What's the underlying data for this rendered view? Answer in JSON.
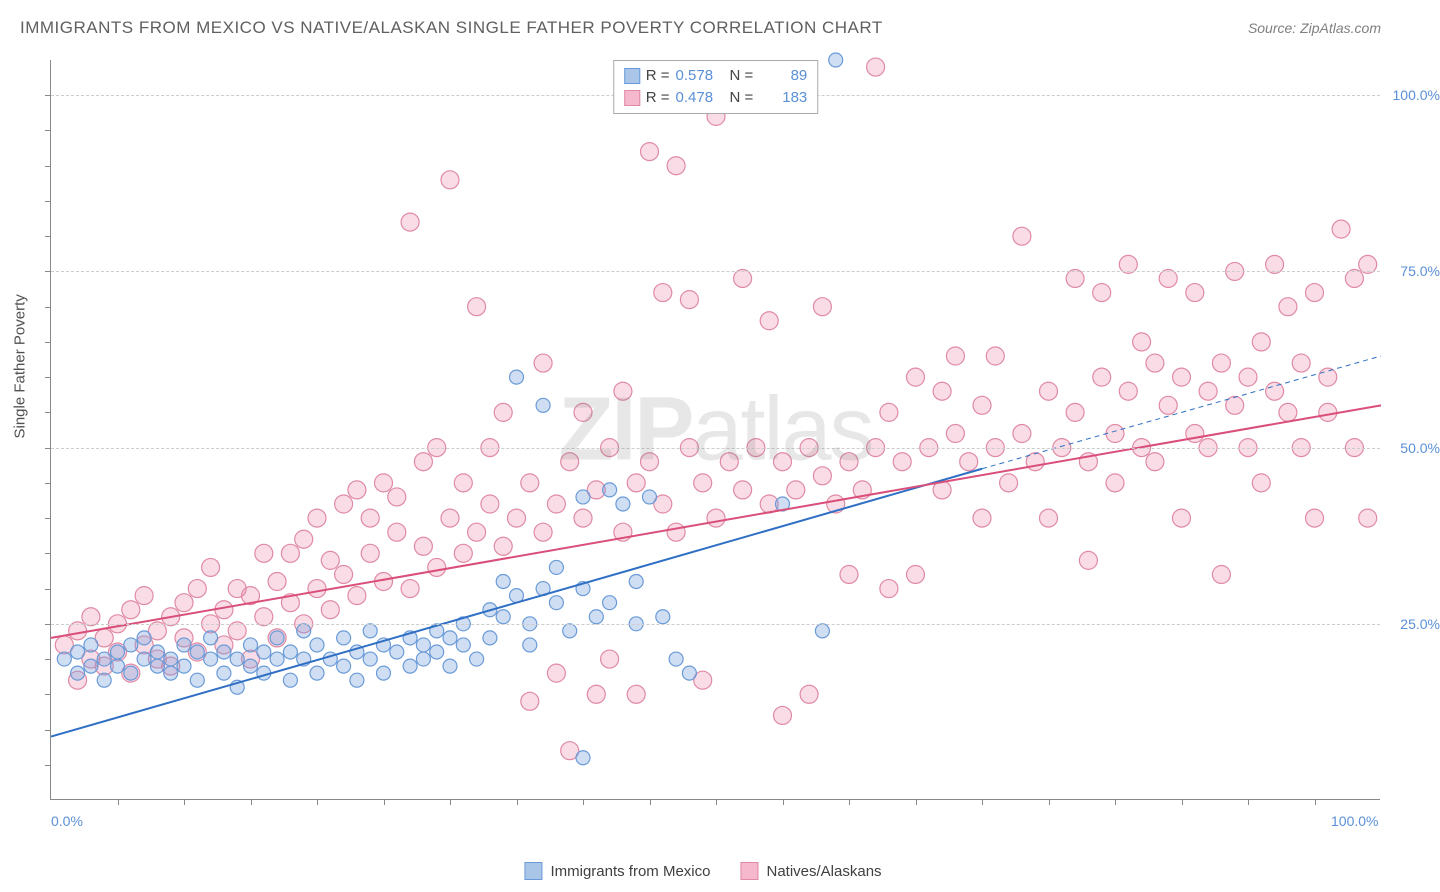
{
  "title": "IMMIGRANTS FROM MEXICO VS NATIVE/ALASKAN SINGLE FATHER POVERTY CORRELATION CHART",
  "source_label": "Source: ",
  "source_name": "ZipAtlas.com",
  "y_axis_label": "Single Father Poverty",
  "watermark_part1": "ZIP",
  "watermark_part2": "atlas",
  "chart": {
    "type": "scatter",
    "background_color": "#ffffff",
    "grid_color": "#cccccc",
    "axis_color": "#888888",
    "tick_label_color": "#5b8fd6",
    "xlim": [
      0,
      100
    ],
    "ylim": [
      0,
      105
    ],
    "y_ticks": [
      {
        "value": 25,
        "label": "25.0%"
      },
      {
        "value": 50,
        "label": "50.0%"
      },
      {
        "value": 75,
        "label": "75.0%"
      },
      {
        "value": 100,
        "label": "100.0%"
      }
    ],
    "x_ticks": [
      {
        "value": 0,
        "label": "0.0%"
      },
      {
        "value": 100,
        "label": "100.0%"
      }
    ],
    "x_minor_ticks": [
      5,
      10,
      15,
      20,
      25,
      30,
      35,
      40,
      45,
      50,
      55,
      60,
      65,
      70,
      75,
      80,
      85,
      90,
      95
    ],
    "y_minor_ticks": [
      5,
      10,
      15,
      20,
      25,
      30,
      35,
      40,
      45,
      50,
      55,
      60,
      65,
      70,
      75,
      80,
      85,
      90,
      95,
      100
    ]
  },
  "series": [
    {
      "id": "mexico",
      "label": "Immigrants from Mexico",
      "marker_fill": "rgba(120,160,220,0.35)",
      "marker_stroke": "#6a9bd8",
      "swatch_fill": "#a9c5e8",
      "swatch_border": "#6a9bd8",
      "r_label": "R =",
      "r_value": "0.578",
      "n_label": "N =",
      "n_value": "89",
      "trend": {
        "x1": 0,
        "y1": 9,
        "x2": 70,
        "y2": 47,
        "dash_x2": 100,
        "dash_y2": 63,
        "color": "#2f6fc4",
        "width": 2
      },
      "marker_radius": 7,
      "points": [
        [
          1,
          20
        ],
        [
          2,
          21
        ],
        [
          2,
          18
        ],
        [
          3,
          19
        ],
        [
          3,
          22
        ],
        [
          4,
          20
        ],
        [
          4,
          17
        ],
        [
          5,
          21
        ],
        [
          5,
          19
        ],
        [
          6,
          18
        ],
        [
          6,
          22
        ],
        [
          7,
          20
        ],
        [
          7,
          23
        ],
        [
          8,
          19
        ],
        [
          8,
          21
        ],
        [
          9,
          18
        ],
        [
          9,
          20
        ],
        [
          10,
          22
        ],
        [
          10,
          19
        ],
        [
          11,
          21
        ],
        [
          11,
          17
        ],
        [
          12,
          20
        ],
        [
          12,
          23
        ],
        [
          13,
          18
        ],
        [
          13,
          21
        ],
        [
          14,
          20
        ],
        [
          14,
          16
        ],
        [
          15,
          19
        ],
        [
          15,
          22
        ],
        [
          16,
          21
        ],
        [
          16,
          18
        ],
        [
          17,
          20
        ],
        [
          17,
          23
        ],
        [
          18,
          21
        ],
        [
          18,
          17
        ],
        [
          19,
          20
        ],
        [
          19,
          24
        ],
        [
          20,
          18
        ],
        [
          20,
          22
        ],
        [
          21,
          20
        ],
        [
          22,
          19
        ],
        [
          22,
          23
        ],
        [
          23,
          21
        ],
        [
          23,
          17
        ],
        [
          24,
          20
        ],
        [
          24,
          24
        ],
        [
          25,
          22
        ],
        [
          25,
          18
        ],
        [
          26,
          21
        ],
        [
          27,
          23
        ],
        [
          27,
          19
        ],
        [
          28,
          22
        ],
        [
          28,
          20
        ],
        [
          29,
          24
        ],
        [
          29,
          21
        ],
        [
          30,
          23
        ],
        [
          30,
          19
        ],
        [
          31,
          25
        ],
        [
          31,
          22
        ],
        [
          32,
          20
        ],
        [
          33,
          27
        ],
        [
          33,
          23
        ],
        [
          34,
          31
        ],
        [
          34,
          26
        ],
        [
          35,
          29
        ],
        [
          35,
          60
        ],
        [
          36,
          25
        ],
        [
          36,
          22
        ],
        [
          37,
          56
        ],
        [
          37,
          30
        ],
        [
          38,
          33
        ],
        [
          38,
          28
        ],
        [
          39,
          24
        ],
        [
          40,
          43
        ],
        [
          40,
          30
        ],
        [
          41,
          26
        ],
        [
          42,
          44
        ],
        [
          42,
          28
        ],
        [
          43,
          42
        ],
        [
          44,
          31
        ],
        [
          44,
          25
        ],
        [
          45,
          43
        ],
        [
          46,
          26
        ],
        [
          47,
          20
        ],
        [
          48,
          18
        ],
        [
          40,
          6
        ],
        [
          59,
          105
        ],
        [
          55,
          42
        ],
        [
          58,
          24
        ]
      ]
    },
    {
      "id": "natives",
      "label": "Natives/Alaskans",
      "marker_fill": "rgba(235,130,160,0.28)",
      "marker_stroke": "#e08aa5",
      "swatch_fill": "#f5b8cc",
      "swatch_border": "#e08aa5",
      "r_label": "R =",
      "r_value": "0.478",
      "n_label": "N =",
      "n_value": "183",
      "trend": {
        "x1": 0,
        "y1": 23,
        "x2": 100,
        "y2": 56,
        "color": "#d94f7a",
        "width": 2
      },
      "marker_radius": 9,
      "points": [
        [
          1,
          22
        ],
        [
          2,
          24
        ],
        [
          2,
          17
        ],
        [
          3,
          20
        ],
        [
          3,
          26
        ],
        [
          4,
          23
        ],
        [
          4,
          19
        ],
        [
          5,
          25
        ],
        [
          5,
          21
        ],
        [
          6,
          18
        ],
        [
          6,
          27
        ],
        [
          7,
          22
        ],
        [
          7,
          29
        ],
        [
          8,
          20
        ],
        [
          8,
          24
        ],
        [
          9,
          26
        ],
        [
          9,
          19
        ],
        [
          10,
          23
        ],
        [
          10,
          28
        ],
        [
          11,
          21
        ],
        [
          11,
          30
        ],
        [
          12,
          25
        ],
        [
          12,
          33
        ],
        [
          13,
          22
        ],
        [
          13,
          27
        ],
        [
          14,
          24
        ],
        [
          14,
          30
        ],
        [
          15,
          29
        ],
        [
          15,
          20
        ],
        [
          16,
          26
        ],
        [
          16,
          35
        ],
        [
          17,
          23
        ],
        [
          17,
          31
        ],
        [
          18,
          28
        ],
        [
          18,
          35
        ],
        [
          19,
          25
        ],
        [
          19,
          37
        ],
        [
          20,
          30
        ],
        [
          20,
          40
        ],
        [
          21,
          27
        ],
        [
          21,
          34
        ],
        [
          22,
          32
        ],
        [
          22,
          42
        ],
        [
          23,
          29
        ],
        [
          23,
          44
        ],
        [
          24,
          35
        ],
        [
          24,
          40
        ],
        [
          25,
          31
        ],
        [
          25,
          45
        ],
        [
          26,
          38
        ],
        [
          26,
          43
        ],
        [
          27,
          30
        ],
        [
          27,
          82
        ],
        [
          28,
          36
        ],
        [
          28,
          48
        ],
        [
          29,
          33
        ],
        [
          29,
          50
        ],
        [
          30,
          40
        ],
        [
          30,
          88
        ],
        [
          31,
          35
        ],
        [
          31,
          45
        ],
        [
          32,
          38
        ],
        [
          32,
          70
        ],
        [
          33,
          42
        ],
        [
          33,
          50
        ],
        [
          34,
          36
        ],
        [
          34,
          55
        ],
        [
          35,
          40
        ],
        [
          36,
          45
        ],
        [
          36,
          14
        ],
        [
          37,
          38
        ],
        [
          37,
          62
        ],
        [
          38,
          42
        ],
        [
          38,
          18
        ],
        [
          39,
          48
        ],
        [
          39,
          7
        ],
        [
          40,
          40
        ],
        [
          40,
          55
        ],
        [
          41,
          44
        ],
        [
          41,
          15
        ],
        [
          42,
          50
        ],
        [
          42,
          20
        ],
        [
          43,
          38
        ],
        [
          43,
          58
        ],
        [
          44,
          45
        ],
        [
          44,
          15
        ],
        [
          45,
          48
        ],
        [
          45,
          92
        ],
        [
          46,
          42
        ],
        [
          46,
          72
        ],
        [
          47,
          38
        ],
        [
          47,
          90
        ],
        [
          48,
          50
        ],
        [
          48,
          71
        ],
        [
          49,
          45
        ],
        [
          49,
          17
        ],
        [
          50,
          40
        ],
        [
          50,
          97
        ],
        [
          51,
          48
        ],
        [
          52,
          44
        ],
        [
          52,
          74
        ],
        [
          53,
          50
        ],
        [
          54,
          42
        ],
        [
          54,
          68
        ],
        [
          55,
          48
        ],
        [
          55,
          12
        ],
        [
          56,
          44
        ],
        [
          57,
          50
        ],
        [
          57,
          15
        ],
        [
          58,
          46
        ],
        [
          58,
          70
        ],
        [
          59,
          42
        ],
        [
          60,
          48
        ],
        [
          60,
          32
        ],
        [
          61,
          44
        ],
        [
          62,
          50
        ],
        [
          62,
          104
        ],
        [
          63,
          30
        ],
        [
          63,
          55
        ],
        [
          64,
          48
        ],
        [
          65,
          32
        ],
        [
          65,
          60
        ],
        [
          66,
          50
        ],
        [
          67,
          44
        ],
        [
          67,
          58
        ],
        [
          68,
          52
        ],
        [
          68,
          63
        ],
        [
          69,
          48
        ],
        [
          70,
          56
        ],
        [
          70,
          40
        ],
        [
          71,
          50
        ],
        [
          71,
          63
        ],
        [
          72,
          45
        ],
        [
          73,
          52
        ],
        [
          73,
          80
        ],
        [
          74,
          48
        ],
        [
          75,
          58
        ],
        [
          75,
          40
        ],
        [
          76,
          50
        ],
        [
          77,
          55
        ],
        [
          77,
          74
        ],
        [
          78,
          48
        ],
        [
          78,
          34
        ],
        [
          79,
          60
        ],
        [
          79,
          72
        ],
        [
          80,
          52
        ],
        [
          80,
          45
        ],
        [
          81,
          58
        ],
        [
          81,
          76
        ],
        [
          82,
          50
        ],
        [
          82,
          65
        ],
        [
          83,
          62
        ],
        [
          83,
          48
        ],
        [
          84,
          56
        ],
        [
          84,
          74
        ],
        [
          85,
          60
        ],
        [
          85,
          40
        ],
        [
          86,
          52
        ],
        [
          86,
          72
        ],
        [
          87,
          58
        ],
        [
          87,
          50
        ],
        [
          88,
          62
        ],
        [
          88,
          32
        ],
        [
          89,
          56
        ],
        [
          89,
          75
        ],
        [
          90,
          50
        ],
        [
          90,
          60
        ],
        [
          91,
          65
        ],
        [
          91,
          45
        ],
        [
          92,
          58
        ],
        [
          92,
          76
        ],
        [
          93,
          55
        ],
        [
          93,
          70
        ],
        [
          94,
          62
        ],
        [
          94,
          50
        ],
        [
          95,
          72
        ],
        [
          95,
          40
        ],
        [
          96,
          60
        ],
        [
          96,
          55
        ],
        [
          97,
          81
        ],
        [
          98,
          50
        ],
        [
          98,
          74
        ],
        [
          99,
          40
        ],
        [
          99,
          76
        ]
      ]
    }
  ],
  "legend": {
    "items": [
      {
        "series": "mexico"
      },
      {
        "series": "natives"
      }
    ]
  }
}
